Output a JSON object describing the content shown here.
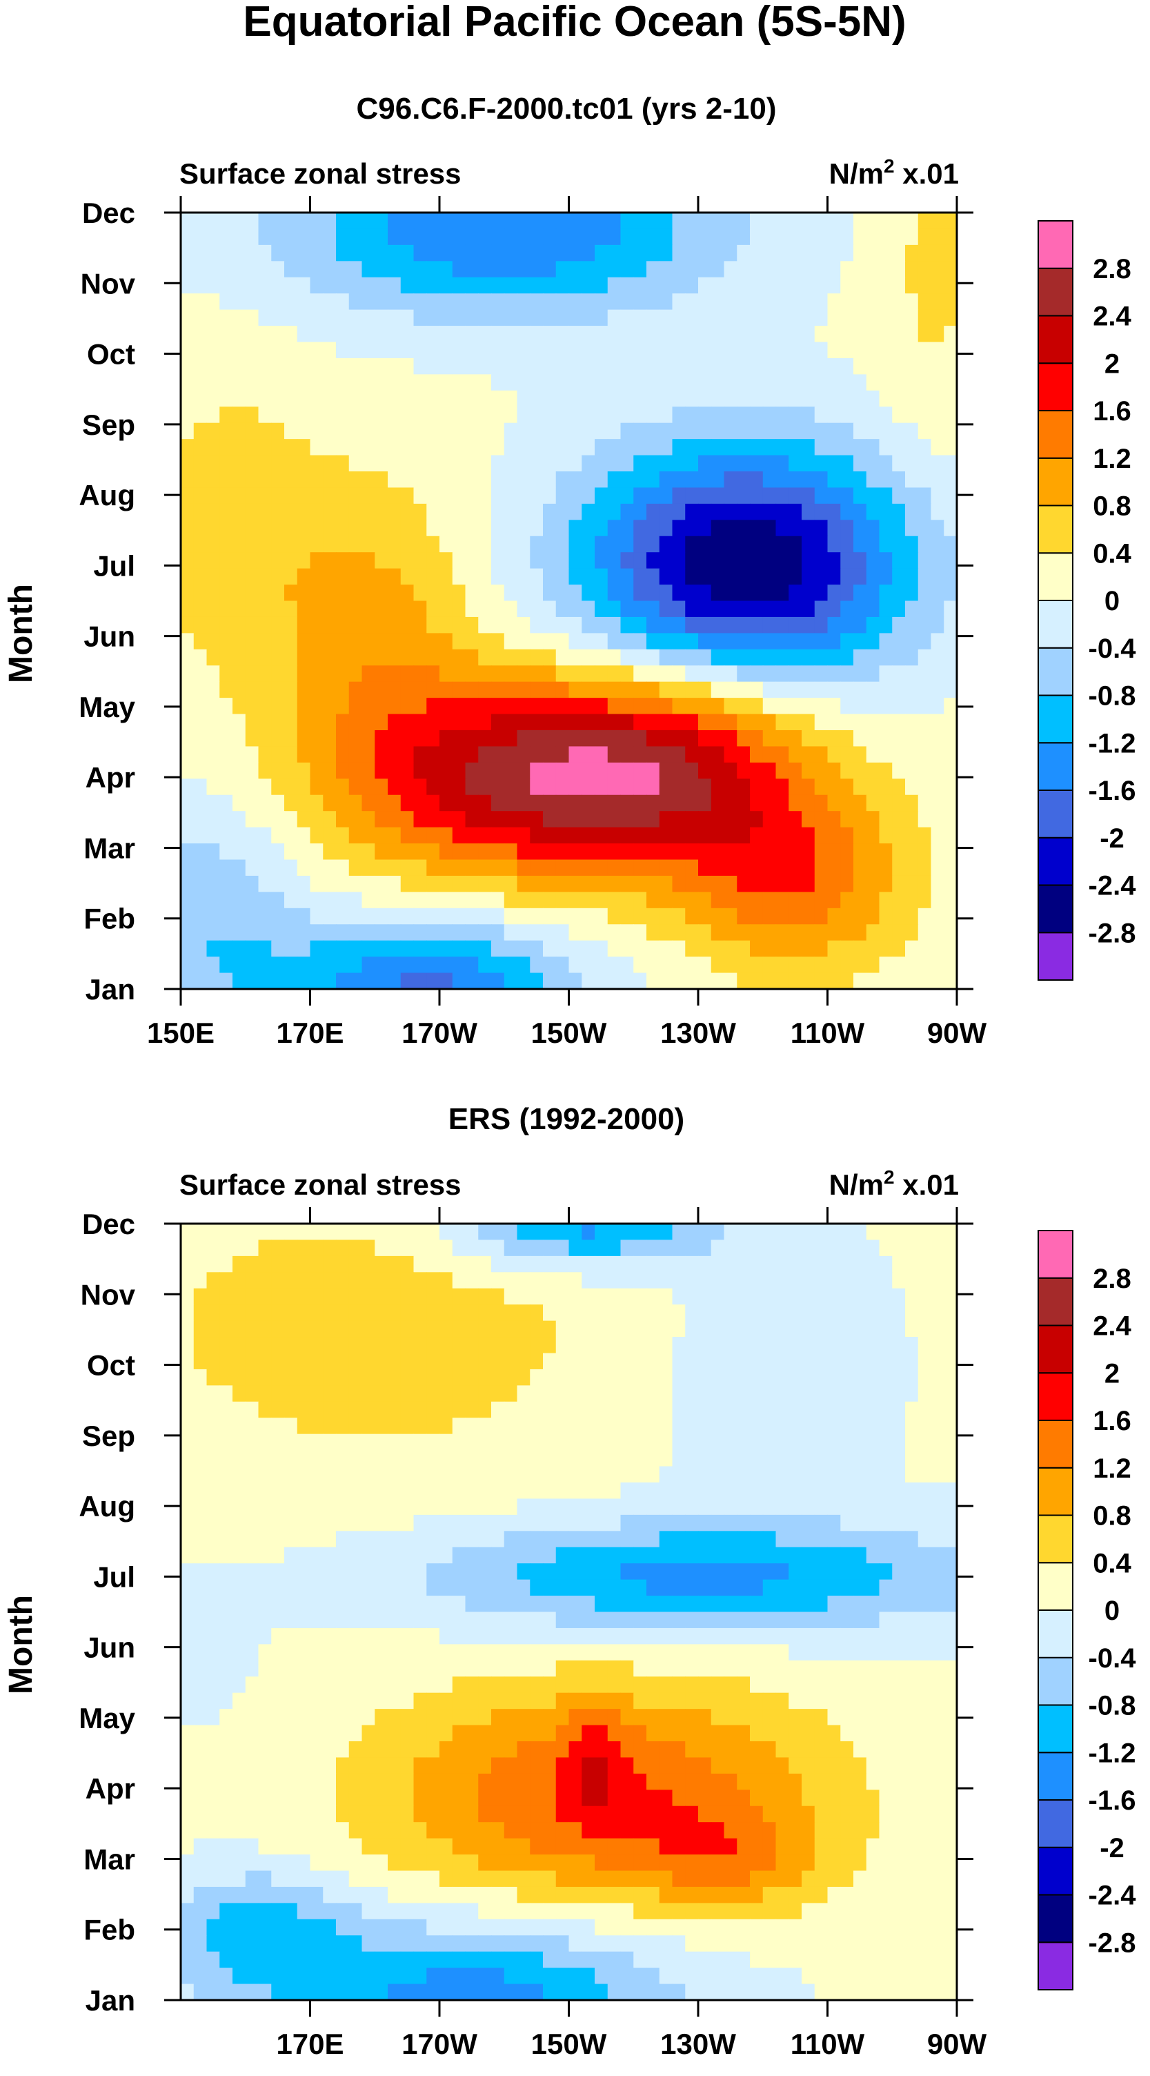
{
  "chart_data": {
    "title": "Equatorial Pacific Ocean (5S-5N)",
    "levels": [
      -2.8,
      -2.4,
      -2,
      -1.6,
      -1.2,
      -0.8,
      -0.4,
      0,
      0.4,
      0.8,
      1.2,
      1.6,
      2,
      2.4,
      2.8
    ],
    "level_labels": [
      "-2.8",
      "-2.4",
      "-2",
      "-1.6",
      "-1.2",
      "-0.8",
      "-0.4",
      "0",
      "0.4",
      "0.8",
      "1.2",
      "1.6",
      "2",
      "2.4",
      "2.8"
    ],
    "colors": [
      "#8a2be2",
      "#000080",
      "#0000cd",
      "#4169e1",
      "#1e90ff",
      "#00bfff",
      "#a0d2ff",
      "#d6f0ff",
      "#ffffc8",
      "#ffd72f",
      "#ffa500",
      "#ff7b00",
      "#ff0000",
      "#c80000",
      "#a52a2a",
      "#ff69b4"
    ],
    "panels": [
      {
        "type": "heatmap",
        "title": "C96.C6.F-2000.tc01 (yrs 2-10)",
        "left_label": "Surface zonal stress",
        "right_label": "N/m",
        "right_label_sup": "2",
        "right_label_tail": " x.01",
        "ylabel": "Month",
        "months": [
          "Jan",
          "Feb",
          "Mar",
          "Apr",
          "May",
          "Jun",
          "Jul",
          "Aug",
          "Sep",
          "Oct",
          "Nov",
          "Dec"
        ],
        "xlim": [
          150,
          270
        ],
        "xticks": [
          {
            "lon": 150,
            "label": "150E"
          },
          {
            "lon": 170,
            "label": "170E"
          },
          {
            "lon": 190,
            "label": "170W"
          },
          {
            "lon": 210,
            "label": "150W"
          },
          {
            "lon": 230,
            "label": "130W"
          },
          {
            "lon": 250,
            "label": "110W"
          },
          {
            "lon": 270,
            "label": "90W"
          }
        ],
        "features": [
          {
            "lon": 207,
            "mon": 4.0,
            "sx": 22,
            "sy": 1.0,
            "amp": 2.6
          },
          {
            "lon": 230,
            "mon": 4.3,
            "sx": 14,
            "sy": 1.0,
            "amp": 0.9
          },
          {
            "lon": 245,
            "mon": 2.5,
            "sx": 12,
            "sy": 0.9,
            "amp": 1.3
          },
          {
            "lon": 180,
            "mon": 6.2,
            "sx": 11,
            "sy": 1.4,
            "amp": 0.8
          },
          {
            "lon": 158,
            "mon": 7.5,
            "sx": 10,
            "sy": 1.5,
            "amp": 0.55
          },
          {
            "lon": 237,
            "mon": 7.0,
            "sx": 18,
            "sy": 1.2,
            "amp": -2.9
          },
          {
            "lon": 200,
            "mon": 11.8,
            "sx": 24,
            "sy": 0.9,
            "amp": -1.7
          },
          {
            "lon": 188,
            "mon": 1.0,
            "sx": 16,
            "sy": 0.7,
            "amp": -1.8
          },
          {
            "lon": 155,
            "mon": 2.0,
            "sx": 10,
            "sy": 1.3,
            "amp": -0.8
          },
          {
            "lon": 266,
            "mon": 11.5,
            "sx": 6,
            "sy": 2.2,
            "amp": 0.4
          }
        ],
        "background": 0.1
      },
      {
        "type": "heatmap",
        "title": "ERS (1992-2000)",
        "left_label": "Surface zonal stress",
        "right_label": "N/m",
        "right_label_sup": "2",
        "right_label_tail": " x.01",
        "ylabel": "Month",
        "months": [
          "Jan",
          "Feb",
          "Mar",
          "Apr",
          "May",
          "Jun",
          "Jul",
          "Aug",
          "Sep",
          "Oct",
          "Nov",
          "Dec"
        ],
        "xlim": [
          150,
          270
        ],
        "xticks": [
          {
            "lon": 170,
            "label": "170E"
          },
          {
            "lon": 190,
            "label": "170W"
          },
          {
            "lon": 210,
            "label": "150W"
          },
          {
            "lon": 230,
            "label": "130W"
          },
          {
            "lon": 250,
            "label": "110W"
          },
          {
            "lon": 270,
            "label": "90W"
          }
        ],
        "features": [
          {
            "lon": 215,
            "mon": 3.9,
            "sx": 24,
            "sy": 1.1,
            "amp": 1.6
          },
          {
            "lon": 235,
            "mon": 3.0,
            "sx": 10,
            "sy": 0.5,
            "amp": 0.7
          },
          {
            "lon": 214,
            "mon": 4.4,
            "sx": 3,
            "sy": 0.6,
            "amp": 0.6
          },
          {
            "lon": 230,
            "mon": 7.0,
            "sx": 30,
            "sy": 0.55,
            "amp": -1.4
          },
          {
            "lon": 195,
            "mon": 1.0,
            "sx": 22,
            "sy": 0.8,
            "amp": -1.5
          },
          {
            "lon": 162,
            "mon": 2.0,
            "sx": 10,
            "sy": 0.6,
            "amp": -1.0
          },
          {
            "lon": 212,
            "mon": 12.0,
            "sx": 14,
            "sy": 0.45,
            "amp": -1.5
          },
          {
            "lon": 180,
            "mon": 10.5,
            "sx": 30,
            "sy": 1.6,
            "amp": 0.55
          },
          {
            "lon": 240,
            "mon": 10.0,
            "sx": 12,
            "sy": 1.3,
            "amp": -0.4
          },
          {
            "lon": 153,
            "mon": 6.0,
            "sx": 5,
            "sy": 0.6,
            "amp": -0.4
          }
        ],
        "background": 0.05
      }
    ]
  }
}
